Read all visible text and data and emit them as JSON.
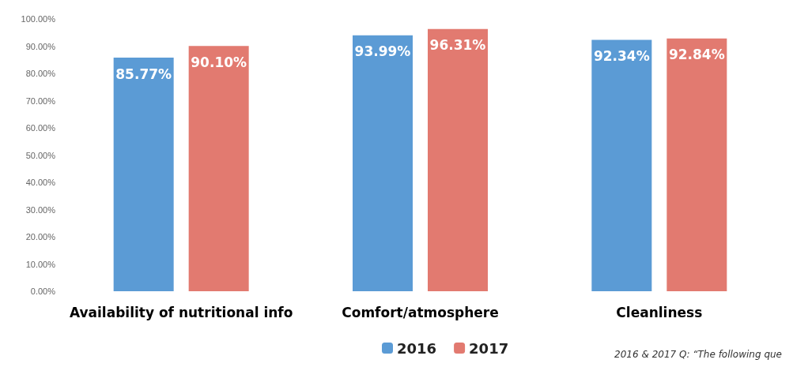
{
  "chart_data": {
    "type": "bar",
    "categories": [
      "Availability of nutritional info",
      "Comfort/atmosphere",
      "Cleanliness"
    ],
    "series": [
      {
        "name": "2016",
        "color": "#5b9bd5",
        "values": [
          85.77,
          93.99,
          92.34
        ],
        "value_labels": [
          "85.77%",
          "93.99%",
          "92.34%"
        ]
      },
      {
        "name": "2017",
        "color": "#e27a70",
        "values": [
          90.1,
          96.31,
          92.84
        ],
        "value_labels": [
          "90.10%",
          "96.31%",
          "92.84%"
        ]
      }
    ],
    "ylim": [
      0,
      100
    ],
    "yticks": [
      {
        "value": 0,
        "label": "0.00%"
      },
      {
        "value": 10,
        "label": "10.00%"
      },
      {
        "value": 20,
        "label": "20.00%"
      },
      {
        "value": 30,
        "label": "30.00%"
      },
      {
        "value": 40,
        "label": "40.00%"
      },
      {
        "value": 50,
        "label": "50.00%"
      },
      {
        "value": 60,
        "label": "60.00%"
      },
      {
        "value": 70,
        "label": "70.00%"
      },
      {
        "value": 80,
        "label": "80.00%"
      },
      {
        "value": 90,
        "label": "90.00%"
      },
      {
        "value": 100,
        "label": "100.00%"
      }
    ],
    "legend": "bottom",
    "annotations": [
      "2016 & 2017 Q: “The following que"
    ]
  }
}
